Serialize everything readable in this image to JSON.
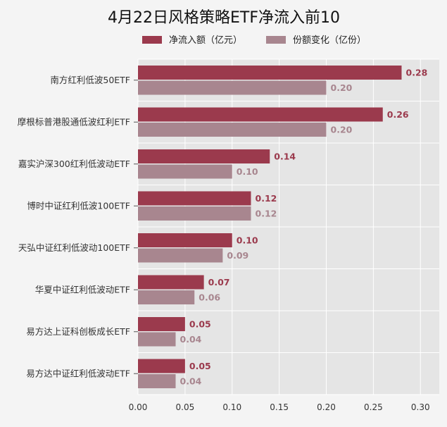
{
  "chart_data": {
    "type": "bar",
    "orientation": "horizontal",
    "title": "4月22日风格策略ETF净流入前10",
    "xlabel": "",
    "ylabel": "",
    "xlim": [
      0,
      0.32
    ],
    "xticks": [
      "0.00",
      "0.05",
      "0.10",
      "0.15",
      "0.20",
      "0.25",
      "0.30"
    ],
    "grid": true,
    "legend_position": "top",
    "categories": [
      "南方红利低波50ETF",
      "摩根标普港股通低波红利ETF",
      "嘉实沪深300红利低波动ETF",
      "博时中证红利低波100ETF",
      "天弘中证红利低波动100ETF",
      "华夏中证红利低波动ETF",
      "易方达上证科创板成长ETF",
      "易方达中证红利低波动ETF"
    ],
    "series": [
      {
        "name": "净流入额（亿元）",
        "color": "#9b3a4d",
        "values": [
          0.28,
          0.26,
          0.14,
          0.12,
          0.1,
          0.07,
          0.05,
          0.05
        ],
        "labels": [
          "0.28",
          "0.26",
          "0.14",
          "0.12",
          "0.10",
          "0.07",
          "0.05",
          "0.05"
        ]
      },
      {
        "name": "份额变化（亿份）",
        "color": "#a8868f",
        "values": [
          0.2,
          0.2,
          0.1,
          0.12,
          0.09,
          0.06,
          0.04,
          0.04
        ],
        "labels": [
          "0.20",
          "0.20",
          "0.10",
          "0.12",
          "0.09",
          "0.06",
          "0.04",
          "0.04"
        ]
      }
    ]
  }
}
